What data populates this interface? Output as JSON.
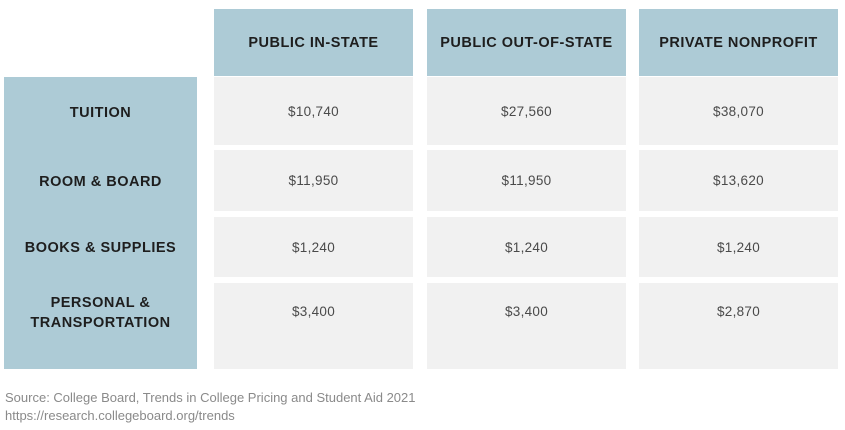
{
  "table": {
    "columns": [
      "PUBLIC IN-STATE",
      "PUBLIC OUT-OF-STATE",
      "PRIVATE NONPROFIT"
    ],
    "rows": [
      {
        "label": "TUITION",
        "values": [
          "$10,740",
          "$27,560",
          "$38,070"
        ]
      },
      {
        "label": "ROOM & BOARD",
        "values": [
          "$11,950",
          "$11,950",
          "$13,620"
        ]
      },
      {
        "label": "BOOKS & SUPPLIES",
        "values": [
          "$1,240",
          "$1,240",
          "$1,240"
        ]
      },
      {
        "label_lines": [
          "PERSONAL &",
          "TRANSPORTATION"
        ],
        "values": [
          "$3,400",
          "$3,400",
          "$2,870"
        ]
      }
    ]
  },
  "source": {
    "line1": "Source: College Board, Trends in College Pricing and Student Aid 2021",
    "line2": "https://research.collegeboard.org/trends"
  },
  "colors": {
    "header_bg": "#adcbd6",
    "cell_bg": "#f1f1f1",
    "divider": "#e4e4e4"
  }
}
